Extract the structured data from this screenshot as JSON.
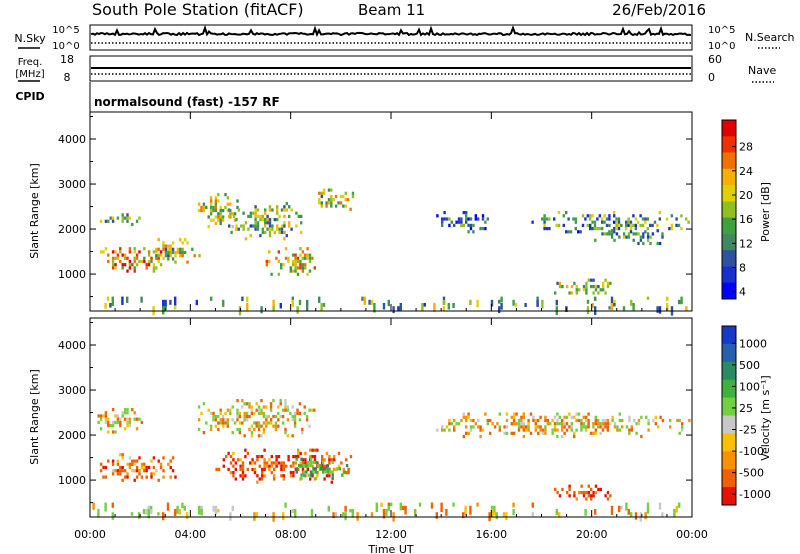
{
  "header": {
    "station_title": "South Pole Station (fitACF)",
    "beam": "Beam 11",
    "date": "26/Feb/2016"
  },
  "param_panels": {
    "nsky_label": "N.Sky",
    "nsky_ticks": [
      "10^5",
      "10^0"
    ],
    "nsearch_label": "N.Search",
    "nsearch_ticks": [
      "10^5",
      "10^0"
    ],
    "freq_label_1": "Freq.",
    "freq_label_2": "[MHz]",
    "freq_ticks": [
      "18",
      "8"
    ],
    "nave_label": "Nave",
    "nave_ticks": [
      "60",
      "0"
    ],
    "cpid_label": "CPID",
    "cpid_text": "normalsound (fast) -157 RF"
  },
  "chart_data": [
    {
      "type": "heatmap",
      "name": "power",
      "ylabel": "Slant Range [km]",
      "xlabel": "Time UT",
      "x_ticks": [
        "00:00",
        "04:00",
        "08:00",
        "12:00",
        "16:00",
        "20:00",
        "00:00"
      ],
      "x_range_hours": [
        0,
        24
      ],
      "y_ticks": [
        1000,
        2000,
        3000,
        4000
      ],
      "ylim": [
        180,
        4600
      ],
      "colorbar_label": "Power [dB]",
      "colorbar_ticks": [
        "28",
        "24",
        "20",
        "16",
        "12",
        "8",
        "4"
      ],
      "colorbar_colors": [
        "#e00000",
        "#f03000",
        "#f07000",
        "#f8b000",
        "#e0d000",
        "#90c020",
        "#40a040",
        "#408860",
        "#3050a0",
        "#1830d0",
        "#0000ff"
      ],
      "regions": [
        {
          "t0": 0.3,
          "t1": 2.2,
          "r0": 2000,
          "r1": 2350,
          "level": 0.4
        },
        {
          "t0": 0.3,
          "t1": 3.2,
          "r0": 900,
          "r1": 1600,
          "level": 0.7
        },
        {
          "t0": 2.5,
          "t1": 4.5,
          "r0": 1200,
          "r1": 1800,
          "level": 0.5
        },
        {
          "t0": 4.3,
          "t1": 6.0,
          "r0": 2000,
          "r1": 2800,
          "level": 0.55
        },
        {
          "t0": 5.5,
          "t1": 8.5,
          "r0": 1700,
          "r1": 2600,
          "level": 0.45
        },
        {
          "t0": 7.0,
          "t1": 9.2,
          "r0": 900,
          "r1": 1600,
          "level": 0.6
        },
        {
          "t0": 9.0,
          "t1": 10.6,
          "r0": 2400,
          "r1": 2900,
          "level": 0.5
        },
        {
          "t0": 13.8,
          "t1": 16.0,
          "r0": 1900,
          "r1": 2400,
          "level": 0.25
        },
        {
          "t0": 17.5,
          "t1": 24.0,
          "r0": 1900,
          "r1": 2400,
          "level": 0.35
        },
        {
          "t0": 20.0,
          "t1": 23.0,
          "r0": 1600,
          "r1": 2000,
          "level": 0.3
        },
        {
          "t0": 18.5,
          "t1": 21.0,
          "r0": 500,
          "r1": 900,
          "level": 0.45
        },
        {
          "t0": 0.0,
          "t1": 24.0,
          "r0": 200,
          "r1": 500,
          "level": 0.4
        }
      ]
    },
    {
      "type": "heatmap",
      "name": "velocity",
      "ylabel": "Slant Range [km]",
      "xlabel": "Time UT",
      "x_ticks": [
        "00:00",
        "04:00",
        "08:00",
        "12:00",
        "16:00",
        "20:00",
        "00:00"
      ],
      "x_range_hours": [
        0,
        24
      ],
      "y_ticks": [
        1000,
        2000,
        3000,
        4000
      ],
      "ylim": [
        180,
        4600
      ],
      "colorbar_label": "Velocity [m s⁻¹]",
      "colorbar_ticks": [
        "1000",
        "500",
        "100",
        "25",
        "-25",
        "-100",
        "-500",
        "-1000"
      ],
      "colorbar_colors": [
        "#1838c8",
        "#2860b0",
        "#2a8a60",
        "#40b040",
        "#70d040",
        "#c8c8c8",
        "#f8c000",
        "#f89000",
        "#f06000",
        "#e81000"
      ],
      "regions": [
        {
          "t0": 0.3,
          "t1": 2.2,
          "r0": 2000,
          "r1": 2600,
          "value": 0
        },
        {
          "t0": 0.3,
          "t1": 3.5,
          "r0": 900,
          "r1": 1600,
          "value": -180
        },
        {
          "t0": 4.3,
          "t1": 9.0,
          "r0": 1900,
          "r1": 2800,
          "value": 0
        },
        {
          "t0": 5.0,
          "t1": 10.5,
          "r0": 900,
          "r1": 1700,
          "value": -250
        },
        {
          "t0": 8.0,
          "t1": 10.5,
          "r0": 1000,
          "r1": 1500,
          "value": 350
        },
        {
          "t0": 13.8,
          "t1": 24.0,
          "r0": 1900,
          "r1": 2500,
          "value": 0
        },
        {
          "t0": 18.5,
          "t1": 21.0,
          "r0": 500,
          "r1": 900,
          "value": -300
        },
        {
          "t0": 0.0,
          "t1": 24.0,
          "r0": 200,
          "r1": 500,
          "value": 30
        }
      ]
    }
  ]
}
